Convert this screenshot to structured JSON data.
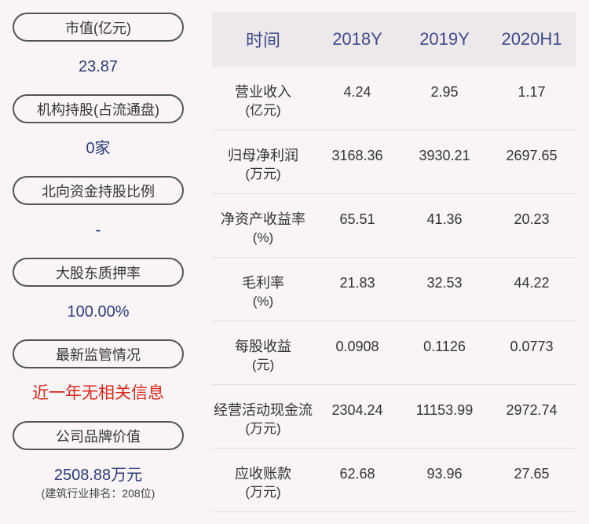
{
  "left": [
    {
      "label": "市值(亿元)",
      "value": "23.87"
    },
    {
      "label": "机构持股(占流通盘)",
      "value": "0家"
    },
    {
      "label": "北向资金持股比例",
      "value": "-"
    },
    {
      "label": "大股东质押率",
      "value": "100.00%"
    },
    {
      "label": "最新监管情况",
      "value": "近一年无相关信息"
    },
    {
      "label": "公司品牌价值",
      "value": "2508.88万元",
      "note": "(建筑行业排名：208位)"
    }
  ],
  "table": {
    "header": [
      "时间",
      "2018Y",
      "2019Y",
      "2020H1"
    ],
    "rows": [
      {
        "label": [
          "营业收入",
          "(亿元)"
        ],
        "values": [
          "4.24",
          "2.95",
          "1.17"
        ]
      },
      {
        "label": [
          "归母净利润",
          "(万元)"
        ],
        "values": [
          "3168.36",
          "3930.21",
          "2697.65"
        ]
      },
      {
        "label": [
          "净资产收益率",
          "(%)"
        ],
        "values": [
          "65.51",
          "41.36",
          "20.23"
        ]
      },
      {
        "label": [
          "毛利率",
          "(%)"
        ],
        "values": [
          "21.83",
          "32.53",
          "44.22"
        ]
      },
      {
        "label": [
          "每股收益",
          "(元)"
        ],
        "values": [
          "0.0908",
          "0.1126",
          "0.0773"
        ]
      },
      {
        "label": [
          "经营活动现金流",
          "(万元)"
        ],
        "values": [
          "2304.24",
          "11153.99",
          "2972.74"
        ]
      },
      {
        "label": [
          "应收账款",
          "(万元)"
        ],
        "values": [
          "62.68",
          "93.96",
          "27.65"
        ]
      }
    ]
  }
}
